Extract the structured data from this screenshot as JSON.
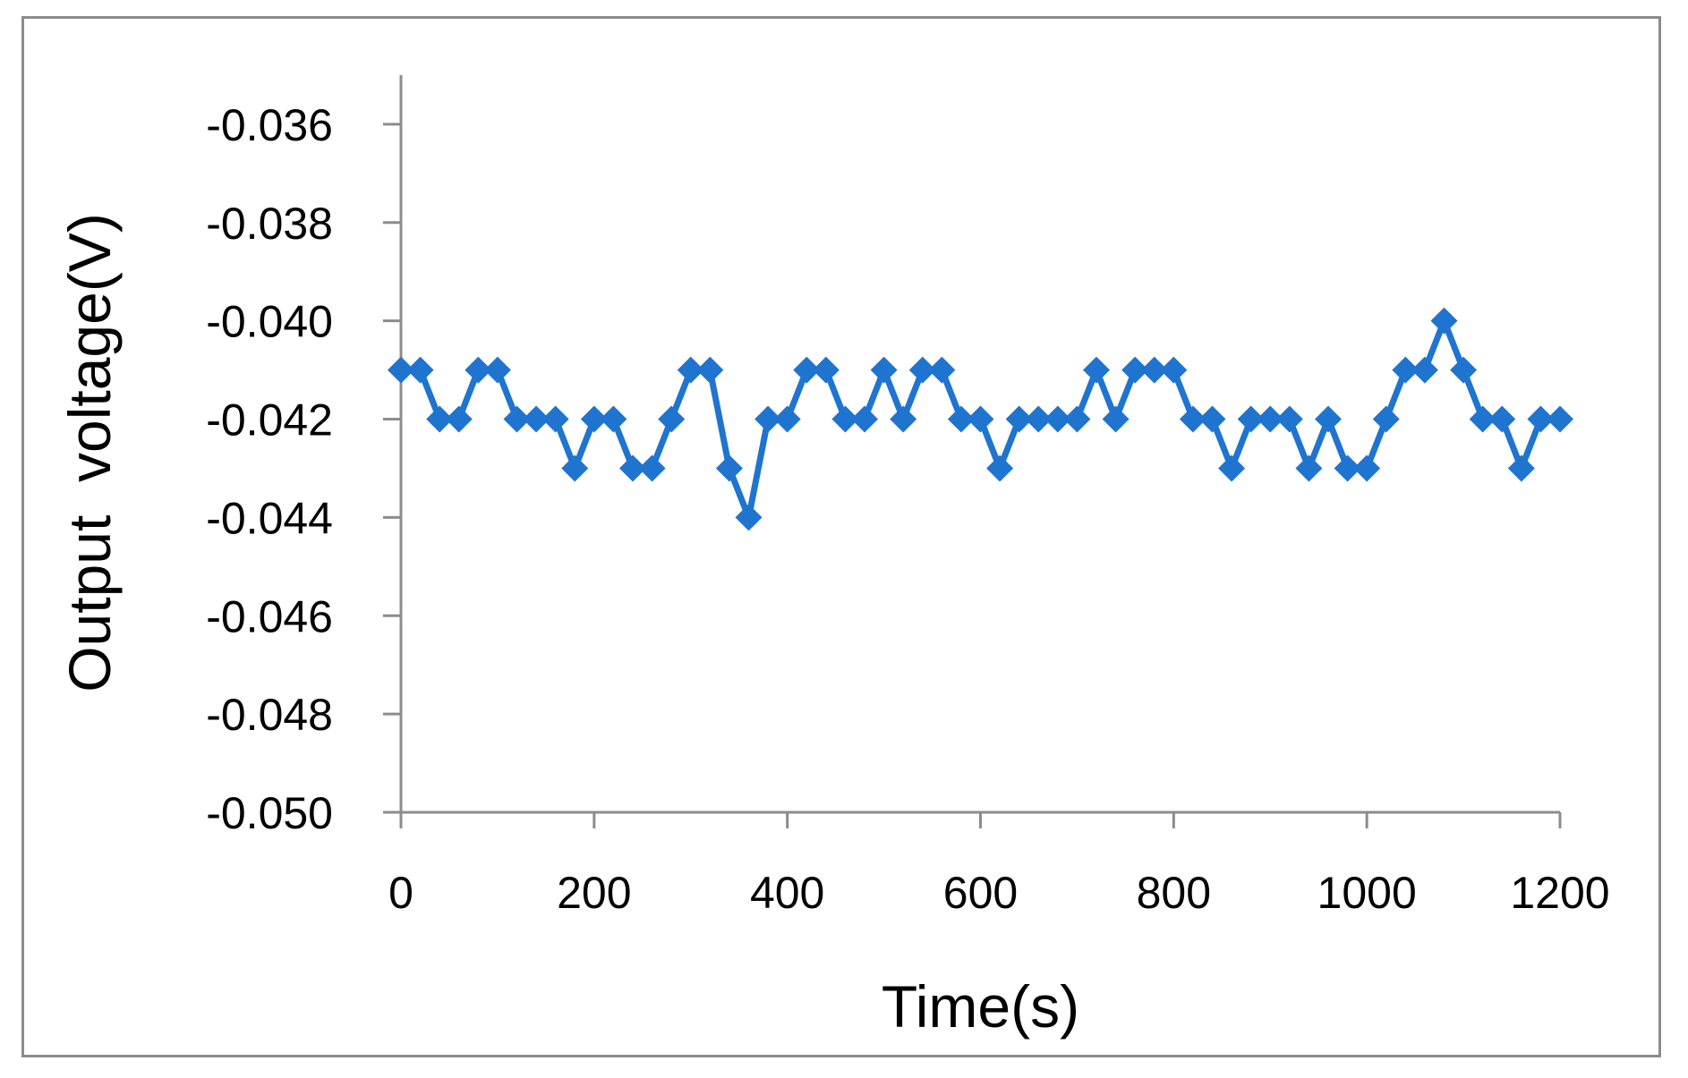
{
  "chart_data": {
    "type": "line",
    "title": "",
    "xlabel": "Time(s)",
    "ylabel": "Output  voltage(V)",
    "xlim": [
      0,
      1200
    ],
    "ylim": [
      -0.05,
      -0.035
    ],
    "x_ticks": [
      0,
      200,
      400,
      600,
      800,
      1000,
      1200
    ],
    "x_tick_labels": [
      "0",
      "200",
      "400",
      "600",
      "800",
      "1000",
      "1200"
    ],
    "y_ticks": [
      -0.036,
      -0.038,
      -0.04,
      -0.042,
      -0.044,
      -0.046,
      -0.048,
      -0.05
    ],
    "y_tick_labels": [
      "-0.036",
      "-0.038",
      "-0.040",
      "-0.042",
      "-0.044",
      "-0.046",
      "-0.048",
      "-0.050"
    ],
    "grid": false,
    "legend": "none",
    "series": [
      {
        "color": "#1f74d0",
        "marker": "diamond",
        "x": [
          0,
          20,
          40,
          60,
          80,
          100,
          120,
          140,
          160,
          180,
          200,
          220,
          240,
          260,
          280,
          300,
          320,
          340,
          360,
          380,
          400,
          420,
          440,
          460,
          480,
          500,
          520,
          540,
          560,
          580,
          600,
          620,
          640,
          660,
          680,
          700,
          720,
          740,
          760,
          780,
          800,
          820,
          840,
          860,
          880,
          900,
          920,
          940,
          960,
          980,
          1000,
          1020,
          1040,
          1060,
          1080,
          1100,
          1120,
          1140,
          1160,
          1180,
          1200
        ],
        "y": [
          -0.041,
          -0.041,
          -0.042,
          -0.042,
          -0.041,
          -0.041,
          -0.042,
          -0.042,
          -0.042,
          -0.043,
          -0.042,
          -0.042,
          -0.043,
          -0.043,
          -0.042,
          -0.041,
          -0.041,
          -0.043,
          -0.044,
          -0.042,
          -0.042,
          -0.041,
          -0.041,
          -0.042,
          -0.042,
          -0.041,
          -0.042,
          -0.041,
          -0.041,
          -0.042,
          -0.042,
          -0.043,
          -0.042,
          -0.042,
          -0.042,
          -0.042,
          -0.041,
          -0.042,
          -0.041,
          -0.041,
          -0.041,
          -0.042,
          -0.042,
          -0.043,
          -0.042,
          -0.042,
          -0.042,
          -0.043,
          -0.042,
          -0.043,
          -0.043,
          -0.042,
          -0.041,
          -0.041,
          -0.04,
          -0.041,
          -0.042,
          -0.042,
          -0.043,
          -0.042,
          -0.042
        ]
      }
    ]
  }
}
